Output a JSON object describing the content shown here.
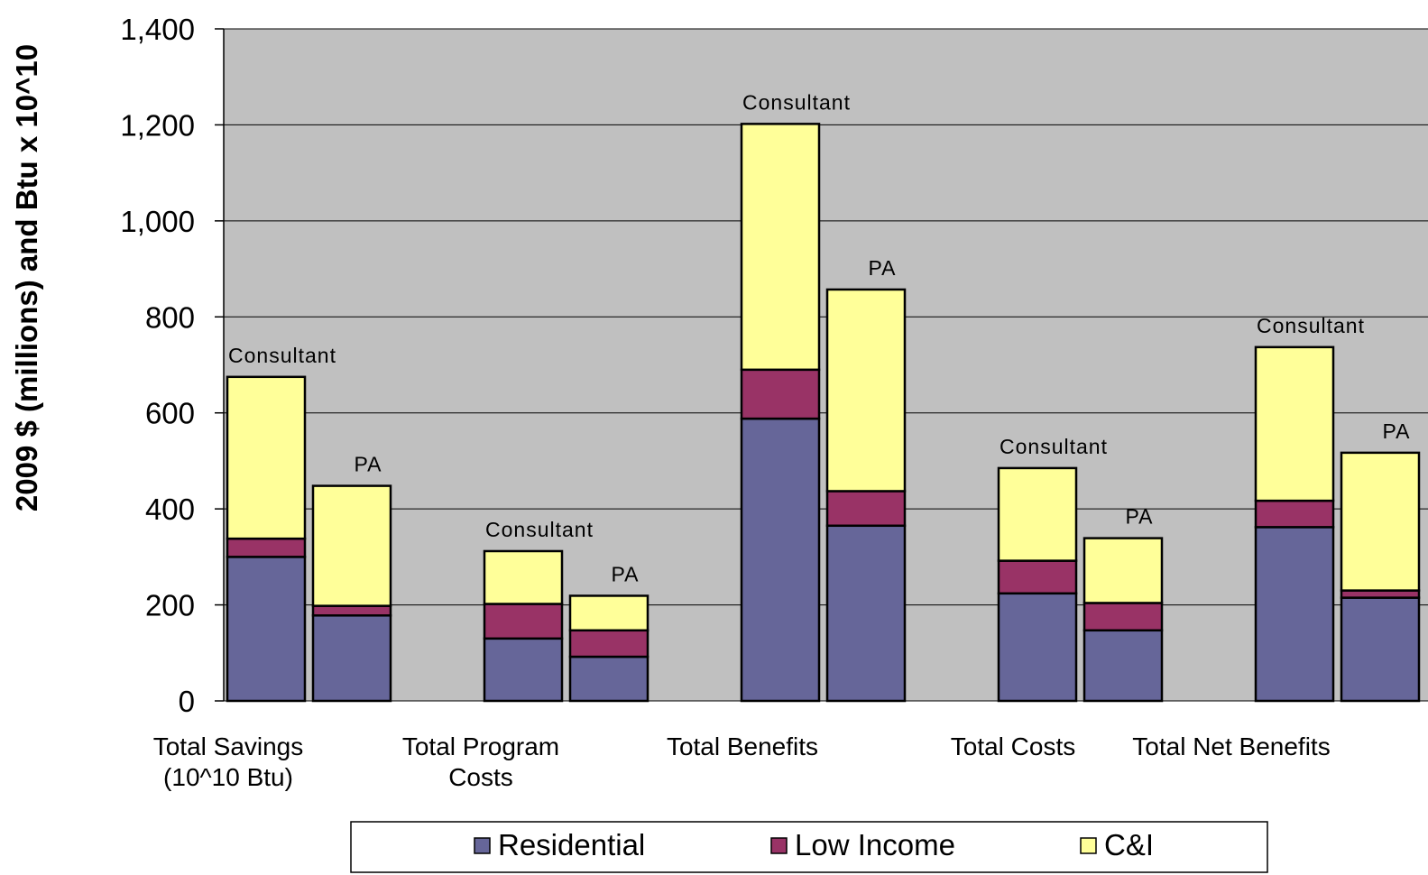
{
  "chart_data": {
    "type": "bar",
    "stacked": true,
    "ylabel": "2009 $ (millions) and  Btu x 10^10",
    "ylim": [
      0,
      1400
    ],
    "yticks": [
      0,
      200,
      400,
      600,
      800,
      1000,
      1200,
      1400
    ],
    "ytick_labels": [
      "0",
      "200",
      "400",
      "600",
      "800",
      "1,000",
      "1,200",
      "1,400"
    ],
    "grid": true,
    "legend_position": "bottom",
    "groups": [
      {
        "label_lines": [
          "Total Savings",
          "(10^10 Btu)"
        ]
      },
      {
        "label_lines": [
          "Total Program",
          "Costs"
        ]
      },
      {
        "label_lines": [
          "Total Benefits"
        ]
      },
      {
        "label_lines": [
          "Total Costs"
        ]
      },
      {
        "label_lines": [
          "Total Net Benefits"
        ]
      }
    ],
    "bars": [
      {
        "group": 0,
        "label": "Consultant",
        "values": [
          300,
          38,
          337
        ]
      },
      {
        "group": 0,
        "label": "PA",
        "values": [
          178,
          20,
          250
        ]
      },
      {
        "group": 1,
        "label": "Consultant",
        "values": [
          130,
          72,
          110
        ]
      },
      {
        "group": 1,
        "label": "PA",
        "values": [
          92,
          55,
          72
        ]
      },
      {
        "group": 2,
        "label": "Consultant",
        "values": [
          588,
          102,
          512
        ]
      },
      {
        "group": 2,
        "label": "PA",
        "values": [
          365,
          72,
          420
        ]
      },
      {
        "group": 3,
        "label": "Consultant",
        "values": [
          224,
          68,
          193
        ]
      },
      {
        "group": 3,
        "label": "PA",
        "values": [
          147,
          57,
          135
        ]
      },
      {
        "group": 4,
        "label": "Consultant",
        "values": [
          362,
          55,
          320
        ]
      },
      {
        "group": 4,
        "label": "PA",
        "values": [
          215,
          15,
          287
        ]
      }
    ],
    "series": [
      {
        "name": "Residential",
        "color": "#666699"
      },
      {
        "name": "Low Income",
        "color": "#993366"
      },
      {
        "name": "C&I",
        "color": "#ffff99"
      }
    ]
  },
  "colors": {
    "plot_background": "#c0c0c0",
    "gridline": "#000000",
    "bar_outline": "#000000"
  }
}
